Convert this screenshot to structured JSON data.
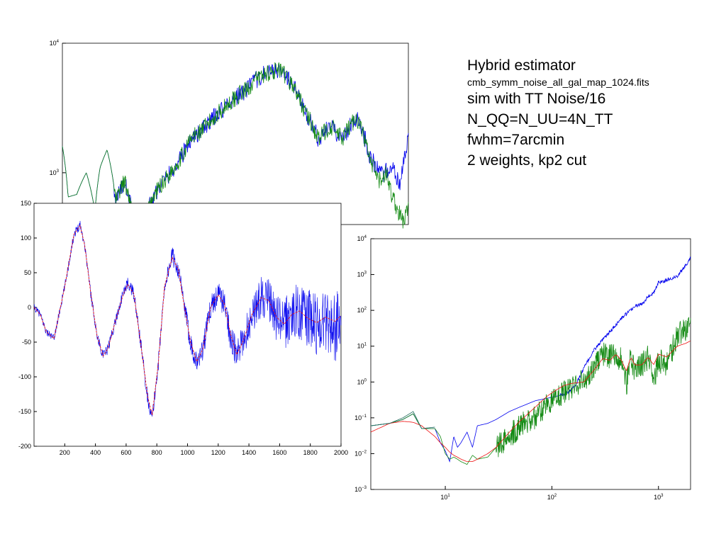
{
  "notes": {
    "line1": "Hybrid estimator",
    "line2": "cmb_symm_noise_all_gal_map_1024.fits",
    "line3": "sim with TT Noise/16",
    "line4": "N_QQ=N_UU=4N_TT",
    "line5": "fwhm=7arcmin",
    "line6": "2 weights, kp2 cut"
  },
  "colors": {
    "blue": "#0000ee",
    "green": "#138a13",
    "red": "#ee1111",
    "teal": "#1f6b5c"
  },
  "chart_data": [
    {
      "id": "top",
      "type": "line",
      "title": "",
      "xlabel": "",
      "ylabel": "",
      "xscale": "linear",
      "yscale": "log",
      "xlim": [
        2,
        2000
      ],
      "ylim_exp": [
        2.6,
        4.0
      ],
      "ytick_labels": [
        {
          "base": "10",
          "exp": "4",
          "value": 10000
        },
        {
          "base": "10",
          "exp": "3",
          "value": 1000
        }
      ],
      "xtick_labels": [],
      "series": [
        {
          "color": "blue",
          "x": [
            2,
            35,
            85,
            140,
            190,
            220,
            260,
            310,
            360,
            420,
            480,
            540,
            600,
            650,
            700,
            740,
            780,
            820,
            860,
            900,
            950,
            1000,
            1060,
            1120,
            1180,
            1250,
            1320,
            1400,
            1480,
            1550,
            1620,
            1700,
            1780,
            1850,
            1900,
            1950,
            2000
          ],
          "y": [
            1600,
            650,
            680,
            1000,
            500,
            1100,
            1500,
            600,
            850,
            380,
            450,
            700,
            900,
            1100,
            1400,
            1800,
            2000,
            2200,
            2500,
            2900,
            3300,
            3800,
            4300,
            5200,
            5900,
            6200,
            5000,
            3000,
            1800,
            2300,
            1800,
            2700,
            1300,
            950,
            1100,
            800,
            1800
          ],
          "noise": 0.07,
          "noise_start": 300
        },
        {
          "color": "green",
          "x": [
            2,
            35,
            85,
            140,
            190,
            220,
            260,
            310,
            360,
            420,
            480,
            540,
            600,
            650,
            700,
            740,
            780,
            820,
            860,
            900,
            950,
            1000,
            1060,
            1120,
            1180,
            1250,
            1320,
            1400,
            1480,
            1550,
            1620,
            1700,
            1780,
            1830,
            1870,
            1900,
            1940,
            1970,
            2000
          ],
          "y": [
            1600,
            650,
            680,
            1000,
            500,
            1100,
            1500,
            600,
            850,
            380,
            450,
            700,
            900,
            1100,
            1400,
            1800,
            2000,
            2200,
            2500,
            2900,
            3300,
            3800,
            4300,
            5200,
            5900,
            6200,
            5000,
            3000,
            1800,
            2300,
            1800,
            2700,
            1200,
            850,
            1000,
            700,
            500,
            420,
            520
          ],
          "noise": 0.07,
          "noise_start": 300
        }
      ]
    },
    {
      "id": "mid",
      "type": "line",
      "title": "",
      "xlabel": "",
      "ylabel": "",
      "xscale": "linear",
      "yscale": "linear",
      "xlim": [
        0,
        2000
      ],
      "ylim": [
        -200,
        150
      ],
      "xticks": [
        200,
        400,
        600,
        800,
        1000,
        1200,
        1400,
        1600,
        1800,
        2000
      ],
      "yticks": [
        150,
        100,
        50,
        0,
        -50,
        -100,
        -150,
        -200
      ],
      "series": [
        {
          "color": "blue",
          "x": [
            0,
            40,
            80,
            130,
            200,
            260,
            300,
            330,
            370,
            410,
            450,
            480,
            530,
            580,
            610,
            650,
            700,
            740,
            770,
            810,
            850,
            900,
            940,
            980,
            1020,
            1060,
            1100,
            1150,
            1200,
            1240,
            1280,
            1320,
            1360,
            1420,
            1480,
            1530,
            1580,
            1630,
            1680,
            1730,
            1780,
            1840,
            1900,
            1960,
            2000
          ],
          "y": [
            0,
            -10,
            -35,
            -45,
            30,
            105,
            120,
            90,
            20,
            -40,
            -70,
            -60,
            -20,
            20,
            35,
            20,
            -60,
            -130,
            -160,
            -80,
            30,
            75,
            55,
            0,
            -50,
            -80,
            -60,
            0,
            20,
            5,
            -40,
            -70,
            -50,
            -10,
            15,
            10,
            -15,
            -25,
            -10,
            -5,
            -15,
            -25,
            -15,
            -30,
            -20
          ],
          "noise_amp": [
            [
              0,
              5
            ],
            [
              600,
              8
            ],
            [
              1200,
              18
            ],
            [
              1500,
              30
            ],
            [
              1800,
              45
            ],
            [
              2000,
              50
            ]
          ]
        },
        {
          "color": "red",
          "x": [
            0,
            40,
            80,
            130,
            200,
            260,
            300,
            330,
            370,
            410,
            450,
            480,
            530,
            580,
            610,
            650,
            700,
            740,
            770,
            810,
            850,
            900,
            940,
            980,
            1020,
            1060,
            1100,
            1150,
            1200,
            1240,
            1280,
            1320,
            1360,
            1420,
            1480,
            1530,
            1580,
            1630,
            1680,
            1730,
            1780,
            1840,
            1900,
            1960,
            2000
          ],
          "y": [
            0,
            -10,
            -35,
            -45,
            30,
            105,
            118,
            90,
            20,
            -40,
            -70,
            -60,
            -20,
            18,
            33,
            20,
            -60,
            -128,
            -155,
            -80,
            30,
            72,
            55,
            0,
            -50,
            -78,
            -60,
            0,
            18,
            5,
            -38,
            -68,
            -50,
            -10,
            14,
            10,
            -14,
            -24,
            -10,
            -5,
            -15,
            -22,
            -14,
            -20,
            -12
          ]
        }
      ]
    },
    {
      "id": "right",
      "type": "line",
      "title": "",
      "xlabel": "",
      "ylabel": "",
      "xscale": "log",
      "yscale": "log",
      "xlim": [
        2,
        2000
      ],
      "ylim_exp": [
        -3,
        4
      ],
      "xtick_labels": [
        {
          "base": "10",
          "exp": "1",
          "value": 10
        },
        {
          "base": "10",
          "exp": "2",
          "value": 100
        },
        {
          "base": "10",
          "exp": "3",
          "value": 1000
        }
      ],
      "ytick_labels": [
        {
          "base": "10",
          "exp": "4",
          "value": 10000
        },
        {
          "base": "10",
          "exp": "3",
          "value": 1000
        },
        {
          "base": "10",
          "exp": "2",
          "value": 100
        },
        {
          "base": "10",
          "exp": "1",
          "value": 10
        },
        {
          "base": "10",
          "exp": "0",
          "value": 1
        },
        {
          "base": "10",
          "exp": "−1",
          "value": 0.1
        },
        {
          "base": "10",
          "exp": "−2",
          "value": 0.01
        },
        {
          "base": "10",
          "exp": "−3",
          "value": 0.001
        }
      ],
      "series": [
        {
          "color": "blue",
          "x": [
            2,
            3,
            4,
            5,
            6,
            8,
            9,
            10,
            11,
            12,
            13,
            14,
            16,
            18,
            20,
            25,
            30,
            40,
            50,
            70,
            90,
            110,
            130,
            150,
            170,
            200,
            250,
            300,
            350,
            400,
            450,
            500,
            550,
            600,
            700,
            800,
            900,
            1000,
            1200,
            1500,
            1800,
            2000
          ],
          "y": [
            0.06,
            0.07,
            0.09,
            0.13,
            0.05,
            0.05,
            0.02,
            0.012,
            0.006,
            0.03,
            0.015,
            0.02,
            0.04,
            0.015,
            0.06,
            0.07,
            0.09,
            0.15,
            0.2,
            0.3,
            0.35,
            0.4,
            0.45,
            0.6,
            0.9,
            2.5,
            8,
            15,
            25,
            40,
            60,
            80,
            100,
            130,
            150,
            250,
            300,
            600,
            700,
            900,
            1800,
            3000
          ],
          "noise": 0.05,
          "noise_start": 120
        },
        {
          "color": "green",
          "x": [
            2,
            3,
            4,
            5,
            6,
            8,
            9,
            10,
            11,
            12,
            13,
            14,
            16,
            18,
            20,
            25,
            30,
            40,
            50,
            70,
            90,
            110,
            130,
            150,
            170,
            200,
            250,
            300,
            350,
            400,
            450,
            500,
            550,
            600,
            700,
            800,
            900,
            1000,
            1200,
            1500,
            1800,
            2000
          ],
          "y": [
            0.06,
            0.07,
            0.09,
            0.13,
            0.05,
            0.05,
            0.03,
            0.01,
            0.007,
            0.008,
            0.007,
            0.006,
            0.005,
            0.009,
            0.007,
            0.008,
            0.015,
            0.03,
            0.06,
            0.1,
            0.25,
            0.4,
            0.5,
            0.7,
            0.9,
            1.0,
            3,
            6,
            5,
            6,
            4,
            0.8,
            5,
            2,
            3,
            5,
            1,
            4,
            3,
            20,
            30,
            60
          ],
          "noise": 0.35,
          "noise_start": 30
        },
        {
          "color": "red",
          "x": [
            2,
            3,
            4,
            5,
            6,
            8,
            9,
            10,
            11,
            12,
            13,
            14,
            16,
            18,
            20,
            25,
            30,
            40,
            50,
            70,
            90,
            110,
            130,
            150,
            170,
            200,
            250,
            300,
            350,
            400,
            450,
            500,
            550,
            600,
            700,
            800,
            900,
            1000,
            1200,
            1500,
            1800,
            2000
          ],
          "y": [
            0.04,
            0.07,
            0.08,
            0.075,
            0.06,
            0.03,
            0.02,
            0.015,
            0.011,
            0.009,
            0.008,
            0.007,
            0.006,
            0.006,
            0.007,
            0.01,
            0.015,
            0.04,
            0.08,
            0.2,
            0.4,
            0.6,
            0.8,
            0.9,
            0.95,
            1.0,
            2.2,
            4.5,
            4,
            6,
            4,
            2,
            5,
            3,
            3,
            5,
            3,
            6,
            5,
            10,
            12,
            14
          ]
        },
        {
          "color": "teal",
          "x": [
            2,
            3,
            4,
            5,
            6,
            8
          ],
          "y": [
            0.06,
            0.07,
            0.1,
            0.15,
            0.05,
            0.055
          ]
        }
      ]
    }
  ]
}
